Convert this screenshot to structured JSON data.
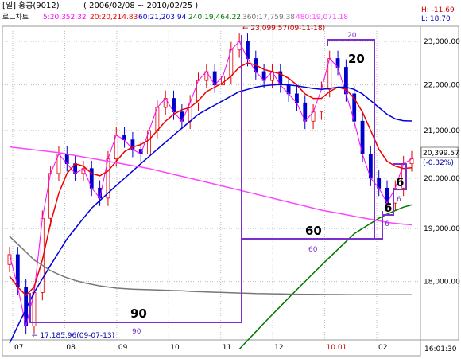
{
  "header": {
    "period": "[일]",
    "symbol": "홍콩(9012)",
    "range": "( 2006/02/08 ~ 2010/02/25 )",
    "scale": "로그차트"
  },
  "moving_averages": [
    {
      "label": "5:20,352.32",
      "color": "#ff00ff"
    },
    {
      "label": "20:20,214.83",
      "color": "#ee0000"
    },
    {
      "label": "60:21,203.94",
      "color": "#0000dd"
    },
    {
      "label": "240:19,464.22",
      "color": "#007700"
    },
    {
      "label": "360:17,759.38",
      "color": "#777777"
    },
    {
      "label": "480:19,071.18",
      "color": "#ff44ff"
    }
  ],
  "high_low": {
    "high": "H: -11.69",
    "low": "L: 18.70"
  },
  "last_price": {
    "value": "20,399.57",
    "change": "(-0.32%)"
  },
  "clock": "16:01:30",
  "annotations": {
    "high_point": "← 23,099.57(09-11-18)",
    "low_point": "← 17,185.96(09-07-13)",
    "cycle_90": "90",
    "cycle_90_small": "90",
    "cycle_60": "60",
    "cycle_60_small": "60",
    "cycle_20": "20",
    "cycle_20_small": "20",
    "cycle_6a": "6",
    "cycle_6a_small": "6",
    "cycle_6b": "6",
    "cycle_6b_small": "6"
  },
  "chart_data": {
    "type": "line",
    "title": "",
    "scale": "log",
    "ylim": [
      17000,
      23300
    ],
    "y_ticks": [
      "23,000.00",
      "22,000.00",
      "21,000.00",
      "20,000.00",
      "19,000.00",
      "18,000.00"
    ],
    "y_tick_values": [
      23000,
      22000,
      21000,
      20000,
      19000,
      18000
    ],
    "x_ticks": [
      "07",
      "08",
      "09",
      "10",
      "11",
      "12",
      "10.01",
      "02"
    ],
    "series": [
      {
        "name": "5",
        "color": "#ff00ff",
        "values": [
          18500,
          17900,
          17200,
          17800,
          19200,
          20100,
          20500,
          20300,
          20100,
          20200,
          19800,
          19600,
          20400,
          20900,
          20800,
          20600,
          20500,
          21000,
          21500,
          21700,
          21400,
          21200,
          21600,
          22100,
          22300,
          22000,
          22200,
          22800,
          23000,
          22600,
          22300,
          22100,
          22300,
          22000,
          21800,
          21600,
          21200,
          21400,
          21900,
          22600,
          22400,
          21800,
          21200,
          20500,
          20000,
          19800,
          19500,
          19800,
          20300,
          20400
        ]
      },
      {
        "name": "20",
        "color": "#ee0000",
        "values": [
          18100,
          17900,
          17750,
          17900,
          18400,
          19100,
          19700,
          20100,
          20300,
          20250,
          20100,
          20050,
          20150,
          20350,
          20550,
          20650,
          20700,
          20800,
          21000,
          21200,
          21350,
          21450,
          21500,
          21650,
          21850,
          21950,
          22050,
          22200,
          22400,
          22500,
          22450,
          22350,
          22300,
          22250,
          22150,
          22000,
          21800,
          21700,
          21700,
          21850,
          21950,
          21900,
          21700,
          21400,
          21000,
          20600,
          20350,
          20250,
          20200,
          20215
        ]
      },
      {
        "name": "60",
        "color": "#0000dd",
        "values": [
          16900,
          17200,
          17500,
          17800,
          18050,
          18300,
          18550,
          18800,
          19000,
          19200,
          19400,
          19550,
          19700,
          19850,
          20000,
          20150,
          20300,
          20450,
          20600,
          20750,
          20900,
          21050,
          21200,
          21350,
          21450,
          21550,
          21650,
          21750,
          21850,
          21900,
          21950,
          21980,
          22000,
          22010,
          22000,
          21980,
          21950,
          21920,
          21900,
          21920,
          21950,
          21950,
          21900,
          21800,
          21650,
          21500,
          21350,
          21250,
          21210,
          21204
        ]
      },
      {
        "name": "240",
        "color": "#007700",
        "values": [
          null,
          null,
          null,
          null,
          null,
          null,
          null,
          null,
          null,
          null,
          null,
          null,
          null,
          null,
          null,
          null,
          null,
          null,
          null,
          null,
          null,
          null,
          null,
          null,
          null,
          null,
          null,
          null,
          16800,
          16950,
          17100,
          17250,
          17400,
          17550,
          17700,
          17850,
          18000,
          18150,
          18300,
          18450,
          18600,
          18750,
          18900,
          19000,
          19100,
          19200,
          19280,
          19350,
          19420,
          19464
        ]
      },
      {
        "name": "360",
        "color": "#777777",
        "values": [
          18850,
          18700,
          18550,
          18400,
          18300,
          18200,
          18130,
          18070,
          18020,
          17980,
          17950,
          17920,
          17900,
          17880,
          17870,
          17860,
          17855,
          17850,
          17845,
          17840,
          17835,
          17830,
          17820,
          17815,
          17810,
          17805,
          17800,
          17795,
          17790,
          17785,
          17780,
          17778,
          17775,
          17772,
          17770,
          17768,
          17766,
          17765,
          17764,
          17763,
          17762,
          17761,
          17760,
          17760,
          17760,
          17759,
          17759,
          17759,
          17759,
          17759
        ]
      },
      {
        "name": "480",
        "color": "#ff44ff",
        "values": [
          20650,
          20630,
          20610,
          20590,
          20570,
          20550,
          20530,
          20500,
          20470,
          20440,
          20410,
          20380,
          20350,
          20320,
          20290,
          20260,
          20230,
          20200,
          20160,
          20120,
          20080,
          20040,
          20000,
          19960,
          19920,
          19880,
          19840,
          19800,
          19760,
          19720,
          19680,
          19640,
          19600,
          19560,
          19520,
          19480,
          19440,
          19400,
          19360,
          19330,
          19300,
          19270,
          19240,
          19210,
          19180,
          19150,
          19120,
          19100,
          19085,
          19071
        ]
      }
    ]
  }
}
